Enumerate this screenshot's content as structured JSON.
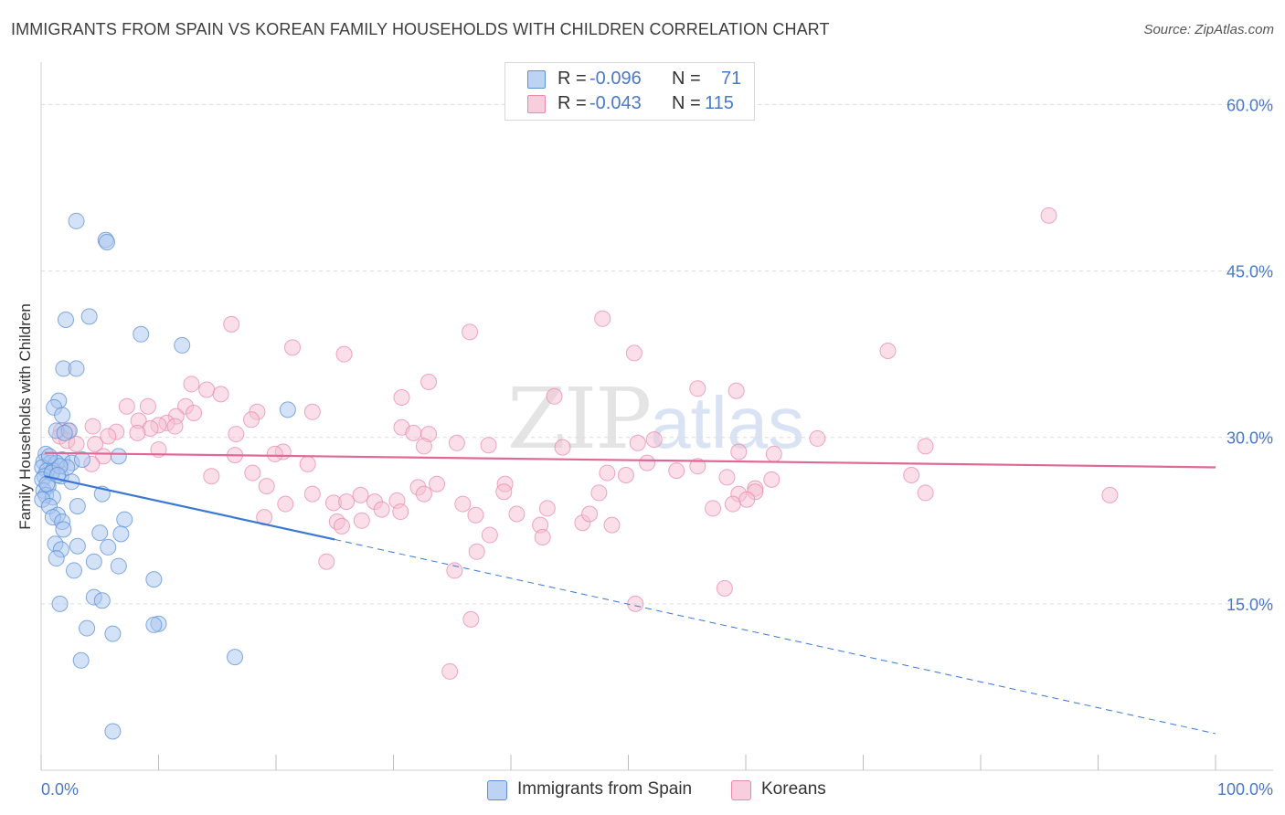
{
  "title": "IMMIGRANTS FROM SPAIN VS KOREAN FAMILY HOUSEHOLDS WITH CHILDREN CORRELATION CHART",
  "source": "Source: ZipAtlas.com",
  "watermark": {
    "zip": "ZIP",
    "atlas": "atlas"
  },
  "legend_top": {
    "rows": [
      {
        "r_label": "R =",
        "r_value": "-0.096",
        "n_label": "N =",
        "n_value": "71"
      },
      {
        "r_label": "R =",
        "r_value": "-0.043",
        "n_label": "N =",
        "n_value": "115"
      }
    ]
  },
  "legend_bottom": {
    "items": [
      {
        "label": "Immigrants from Spain"
      },
      {
        "label": "Koreans"
      }
    ]
  },
  "colors": {
    "blue_fill": "#a9c6ef",
    "blue_stroke": "#5b8fd6",
    "blue_line": "#3a78d4",
    "pink_fill": "#f6bfd1",
    "pink_stroke": "#e98aab",
    "pink_line": "#e06897",
    "tick_text": "#4a78c8",
    "grid": "#dcdcdc"
  },
  "chart_data": {
    "type": "scatter",
    "title": "IMMIGRANTS FROM SPAIN VS KOREAN FAMILY HOUSEHOLDS WITH CHILDREN CORRELATION CHART",
    "xlabel": "",
    "ylabel": "Family Households with Children",
    "xlim": [
      0,
      100
    ],
    "ylim": [
      0,
      63
    ],
    "x_tick_labels": [
      "0.0%",
      "100.0%"
    ],
    "y_ticks": [
      15,
      30,
      45,
      60
    ],
    "y_tick_labels": [
      "15.0%",
      "30.0%",
      "45.0%",
      "60.0%"
    ],
    "grid": true,
    "legend_placement": "top-center",
    "series": [
      {
        "name": "Immigrants from Spain",
        "r": -0.096,
        "n": 71,
        "trend": {
          "x0": 0.3,
          "y0": 26.5,
          "x1": 25.0,
          "y1": 20.8,
          "dash_to_x": 100,
          "dash_to_y": 3.3
        },
        "points": [
          [
            3.0,
            49.5
          ],
          [
            5.5,
            47.8
          ],
          [
            5.6,
            47.6
          ],
          [
            4.1,
            40.9
          ],
          [
            2.1,
            40.6
          ],
          [
            8.5,
            39.3
          ],
          [
            12.0,
            38.3
          ],
          [
            1.9,
            36.2
          ],
          [
            3.0,
            36.2
          ],
          [
            1.5,
            33.3
          ],
          [
            1.1,
            32.7
          ],
          [
            21.0,
            32.5
          ],
          [
            1.8,
            32.0
          ],
          [
            1.3,
            30.6
          ],
          [
            2.4,
            30.6
          ],
          [
            2.0,
            30.4
          ],
          [
            0.4,
            28.5
          ],
          [
            1.8,
            28.0
          ],
          [
            0.2,
            27.8
          ],
          [
            0.8,
            27.7
          ],
          [
            1.3,
            27.7
          ],
          [
            2.6,
            27.7
          ],
          [
            3.5,
            28.0
          ],
          [
            6.6,
            28.3
          ],
          [
            0.1,
            27.3
          ],
          [
            0.5,
            27.0
          ],
          [
            1.0,
            27.0
          ],
          [
            0.3,
            26.5
          ],
          [
            1.7,
            26.5
          ],
          [
            0.1,
            26.2
          ],
          [
            2.6,
            26.0
          ],
          [
            0.6,
            25.6
          ],
          [
            0.2,
            25.2
          ],
          [
            0.4,
            24.8
          ],
          [
            1.0,
            24.6
          ],
          [
            0.1,
            24.4
          ],
          [
            5.2,
            24.9
          ],
          [
            0.7,
            23.8
          ],
          [
            3.1,
            23.8
          ],
          [
            1.4,
            23.0
          ],
          [
            1.0,
            22.8
          ],
          [
            1.8,
            22.4
          ],
          [
            7.1,
            22.6
          ],
          [
            1.9,
            21.7
          ],
          [
            6.8,
            21.3
          ],
          [
            5.0,
            21.4
          ],
          [
            1.2,
            20.4
          ],
          [
            3.1,
            20.2
          ],
          [
            5.7,
            20.1
          ],
          [
            1.7,
            19.9
          ],
          [
            1.3,
            19.1
          ],
          [
            4.5,
            18.8
          ],
          [
            6.6,
            18.4
          ],
          [
            2.8,
            18.0
          ],
          [
            9.6,
            17.2
          ],
          [
            4.5,
            15.6
          ],
          [
            5.2,
            15.3
          ],
          [
            1.6,
            15.0
          ],
          [
            10.0,
            13.2
          ],
          [
            9.6,
            13.1
          ],
          [
            3.9,
            12.8
          ],
          [
            6.1,
            12.3
          ],
          [
            3.4,
            9.9
          ],
          [
            16.5,
            10.2
          ],
          [
            6.1,
            3.5
          ],
          [
            2.2,
            27.3
          ],
          [
            0.9,
            26.8
          ],
          [
            1.6,
            27.4
          ],
          [
            0.5,
            25.8
          ],
          [
            1.4,
            26.6
          ],
          [
            0.7,
            28.3
          ]
        ]
      },
      {
        "name": "Koreans",
        "r": -0.043,
        "n": 115,
        "trend": {
          "x0": 0.3,
          "y0": 28.6,
          "x1": 100,
          "y1": 27.3
        },
        "points": [
          [
            85.8,
            50.0
          ],
          [
            47.8,
            40.7
          ],
          [
            16.2,
            40.2
          ],
          [
            36.5,
            39.5
          ],
          [
            21.4,
            38.1
          ],
          [
            25.8,
            37.5
          ],
          [
            50.5,
            37.6
          ],
          [
            72.1,
            37.8
          ],
          [
            33.0,
            35.0
          ],
          [
            12.8,
            34.8
          ],
          [
            14.1,
            34.3
          ],
          [
            15.3,
            33.9
          ],
          [
            55.9,
            34.4
          ],
          [
            59.2,
            34.2
          ],
          [
            30.7,
            33.6
          ],
          [
            43.7,
            33.7
          ],
          [
            7.3,
            32.8
          ],
          [
            9.1,
            32.8
          ],
          [
            12.3,
            32.8
          ],
          [
            18.4,
            32.3
          ],
          [
            23.1,
            32.3
          ],
          [
            13.0,
            32.2
          ],
          [
            11.5,
            31.9
          ],
          [
            17.9,
            31.6
          ],
          [
            8.3,
            31.5
          ],
          [
            10.7,
            31.3
          ],
          [
            10.0,
            31.1
          ],
          [
            4.4,
            31.0
          ],
          [
            11.4,
            31.0
          ],
          [
            9.3,
            30.8
          ],
          [
            30.7,
            30.9
          ],
          [
            1.7,
            30.6
          ],
          [
            2.3,
            30.6
          ],
          [
            6.4,
            30.5
          ],
          [
            8.2,
            30.4
          ],
          [
            16.6,
            30.3
          ],
          [
            31.7,
            30.4
          ],
          [
            33.0,
            30.3
          ],
          [
            1.6,
            30.1
          ],
          [
            5.7,
            30.1
          ],
          [
            66.1,
            29.9
          ],
          [
            2.2,
            29.7
          ],
          [
            3.0,
            29.4
          ],
          [
            4.6,
            29.4
          ],
          [
            32.6,
            29.2
          ],
          [
            35.4,
            29.5
          ],
          [
            38.1,
            29.3
          ],
          [
            44.4,
            29.1
          ],
          [
            50.8,
            29.5
          ],
          [
            52.2,
            29.8
          ],
          [
            75.3,
            29.2
          ],
          [
            10.0,
            28.9
          ],
          [
            20.6,
            28.7
          ],
          [
            16.5,
            28.4
          ],
          [
            19.9,
            28.5
          ],
          [
            59.4,
            28.7
          ],
          [
            62.4,
            28.5
          ],
          [
            5.3,
            28.3
          ],
          [
            4.3,
            27.6
          ],
          [
            22.7,
            27.6
          ],
          [
            51.6,
            27.7
          ],
          [
            54.1,
            27.0
          ],
          [
            55.9,
            27.4
          ],
          [
            48.2,
            26.8
          ],
          [
            49.8,
            26.6
          ],
          [
            18.0,
            26.8
          ],
          [
            14.5,
            26.5
          ],
          [
            58.4,
            26.4
          ],
          [
            62.2,
            26.2
          ],
          [
            74.1,
            26.6
          ],
          [
            19.2,
            25.6
          ],
          [
            32.1,
            25.5
          ],
          [
            33.7,
            25.8
          ],
          [
            39.5,
            25.8
          ],
          [
            60.8,
            25.4
          ],
          [
            23.1,
            24.9
          ],
          [
            27.2,
            24.8
          ],
          [
            32.6,
            24.9
          ],
          [
            39.4,
            25.1
          ],
          [
            47.5,
            25.0
          ],
          [
            59.4,
            24.9
          ],
          [
            60.8,
            25.1
          ],
          [
            75.3,
            25.0
          ],
          [
            91.0,
            24.8
          ],
          [
            30.3,
            24.3
          ],
          [
            20.8,
            24.0
          ],
          [
            24.9,
            24.1
          ],
          [
            26.0,
            24.2
          ],
          [
            28.4,
            24.2
          ],
          [
            58.9,
            24.0
          ],
          [
            60.1,
            24.4
          ],
          [
            29.0,
            23.5
          ],
          [
            30.6,
            23.3
          ],
          [
            37.0,
            23.0
          ],
          [
            40.5,
            23.1
          ],
          [
            19.0,
            22.8
          ],
          [
            25.2,
            22.4
          ],
          [
            27.3,
            22.5
          ],
          [
            42.5,
            22.1
          ],
          [
            46.1,
            22.3
          ],
          [
            48.6,
            22.1
          ],
          [
            25.6,
            22.0
          ],
          [
            38.2,
            21.2
          ],
          [
            42.7,
            21.0
          ],
          [
            37.1,
            19.7
          ],
          [
            24.3,
            18.8
          ],
          [
            35.2,
            18.0
          ],
          [
            58.2,
            16.4
          ],
          [
            50.6,
            15.0
          ],
          [
            36.6,
            13.6
          ],
          [
            34.8,
            8.9
          ],
          [
            35.9,
            24.0
          ],
          [
            43.1,
            23.6
          ],
          [
            46.7,
            23.1
          ],
          [
            57.2,
            23.6
          ]
        ]
      }
    ]
  }
}
